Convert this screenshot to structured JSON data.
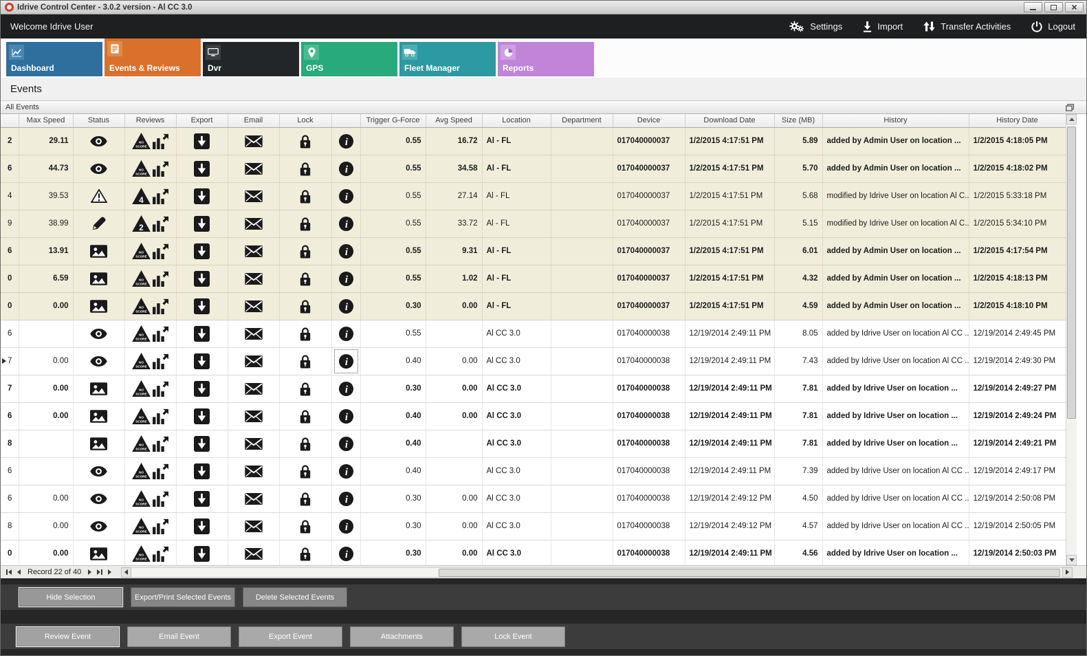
{
  "titlebar": {
    "title": "Idrive Control Center - 3.0.2 version - Al CC 3.0"
  },
  "topbar": {
    "welcome": "Welcome Idrive User",
    "actions": [
      {
        "id": "settings",
        "label": "Settings",
        "icon": "gears-icon"
      },
      {
        "id": "import",
        "label": "Import",
        "icon": "import-arrow-icon"
      },
      {
        "id": "transfer-activities",
        "label": "Transfer Activities",
        "icon": "transfer-arrows-icon"
      },
      {
        "id": "logout",
        "label": "Logout",
        "icon": "power-icon"
      }
    ]
  },
  "tabs": [
    {
      "id": "dashboard",
      "label": "Dashboard",
      "color": "#2e6f9e",
      "badge_color": "#4687b2",
      "active": false
    },
    {
      "id": "events-reviews",
      "label": "Events & Reviews",
      "color": "#d9712d",
      "badge_color": "#e18a48",
      "active": true
    },
    {
      "id": "dvr",
      "label": "Dvr",
      "color": "#232628",
      "badge_color": "#3b3f42",
      "active": false
    },
    {
      "id": "gps",
      "label": "GPS",
      "color": "#28aa7d",
      "badge_color": "#4cbb93",
      "active": false
    },
    {
      "id": "fleet-manager",
      "label": "Fleet Manager",
      "color": "#2d99a1",
      "badge_color": "#4fadb4",
      "active": false
    },
    {
      "id": "reports",
      "label": "Reports",
      "color": "#c084d8",
      "badge_color": "#cf9fe3",
      "active": false
    }
  ],
  "page": {
    "title": "Events",
    "panel_title": "All Events"
  },
  "grid": {
    "columns": [
      {
        "key": "edge",
        "label": ""
      },
      {
        "key": "max_speed",
        "label": "Max Speed"
      },
      {
        "key": "status",
        "label": "Status"
      },
      {
        "key": "reviews",
        "label": "Reviews"
      },
      {
        "key": "export",
        "label": "Export"
      },
      {
        "key": "email",
        "label": "Email"
      },
      {
        "key": "lock",
        "label": "Lock"
      },
      {
        "key": "info",
        "label": ""
      },
      {
        "key": "trigger",
        "label": "Trigger G-Force"
      },
      {
        "key": "avg_speed",
        "label": "Avg Speed"
      },
      {
        "key": "location",
        "label": "Location"
      },
      {
        "key": "department",
        "label": "Department"
      },
      {
        "key": "device",
        "label": "Device"
      },
      {
        "key": "download_date",
        "label": "Download Date"
      },
      {
        "key": "size",
        "label": "Size (MB)"
      },
      {
        "key": "history",
        "label": "History"
      },
      {
        "key": "history_date",
        "label": "History Date"
      }
    ],
    "rows": [
      {
        "edge": "2",
        "max_speed": "29.11",
        "status": "eye",
        "review": "noscore",
        "trigger": "0.55",
        "avg_speed": "16.72",
        "location": "Al - FL",
        "department": "",
        "device": "017040000037",
        "download_date": "1/2/2015 4:17:51 PM",
        "size": "5.89",
        "history": "added by Admin User on location ...",
        "history_date": "1/2/2015 4:18:05 PM",
        "bold": true,
        "shade": "beige",
        "selected": false
      },
      {
        "edge": "6",
        "max_speed": "44.73",
        "status": "eye",
        "review": "noscore",
        "trigger": "0.55",
        "avg_speed": "34.58",
        "location": "Al - FL",
        "department": "",
        "device": "017040000037",
        "download_date": "1/2/2015 4:17:51 PM",
        "size": "5.70",
        "history": "added by Admin User on location ...",
        "history_date": "1/2/2015 4:18:02 PM",
        "bold": true,
        "shade": "beige",
        "selected": false
      },
      {
        "edge": "4",
        "max_speed": "39.53",
        "status": "warning",
        "review": "score4",
        "trigger": "0.55",
        "avg_speed": "27.14",
        "location": "Al - FL",
        "department": "",
        "device": "017040000037",
        "download_date": "1/2/2015 4:17:51 PM",
        "size": "5.68",
        "history": "modified by Idrive User on location Al C...",
        "history_date": "1/2/2015 5:33:18 PM",
        "bold": false,
        "shade": "beige",
        "selected": false
      },
      {
        "edge": "9",
        "max_speed": "38.99",
        "status": "pencil",
        "review": "score2",
        "trigger": "0.55",
        "avg_speed": "33.72",
        "location": "Al - FL",
        "department": "",
        "device": "017040000037",
        "download_date": "1/2/2015 4:17:51 PM",
        "size": "5.15",
        "history": "modified by Idrive User on location Al C...",
        "history_date": "1/2/2015 5:34:10 PM",
        "bold": false,
        "shade": "beige",
        "selected": false
      },
      {
        "edge": "6",
        "max_speed": "13.91",
        "status": "image",
        "review": "noscore",
        "trigger": "0.55",
        "avg_speed": "9.31",
        "location": "Al - FL",
        "department": "",
        "device": "017040000037",
        "download_date": "1/2/2015 4:17:51 PM",
        "size": "6.01",
        "history": "added by Admin User on location ...",
        "history_date": "1/2/2015 4:17:54 PM",
        "bold": true,
        "shade": "beige",
        "selected": false
      },
      {
        "edge": "0",
        "max_speed": "6.59",
        "status": "image",
        "review": "noscore",
        "trigger": "0.55",
        "avg_speed": "1.02",
        "location": "Al - FL",
        "department": "",
        "device": "017040000037",
        "download_date": "1/2/2015 4:17:51 PM",
        "size": "4.32",
        "history": "added by Admin User on location ...",
        "history_date": "1/2/2015 4:18:13 PM",
        "bold": true,
        "shade": "beige",
        "selected": false
      },
      {
        "edge": "0",
        "max_speed": "0.00",
        "status": "image",
        "review": "noscore",
        "trigger": "0.30",
        "avg_speed": "0.00",
        "location": "Al - FL",
        "department": "",
        "device": "017040000037",
        "download_date": "1/2/2015 4:17:51 PM",
        "size": "4.59",
        "history": "added by Admin User on location ...",
        "history_date": "1/2/2015 4:18:10 PM",
        "bold": true,
        "shade": "beige",
        "selected": false
      },
      {
        "edge": "6",
        "max_speed": "",
        "status": "eye",
        "review": "noscore",
        "trigger": "0.55",
        "avg_speed": "",
        "location": "Al CC 3.0",
        "department": "",
        "device": "017040000038",
        "download_date": "12/19/2014 2:49:11 PM",
        "size": "8.05",
        "history": "added by Idrive User on location Al CC ...",
        "history_date": "12/19/2014 2:49:45 PM",
        "bold": false,
        "shade": "white",
        "selected": false
      },
      {
        "edge": "7",
        "max_speed": "0.00",
        "status": "eye",
        "review": "noscore",
        "trigger": "0.40",
        "avg_speed": "0.00",
        "location": "Al CC 3.0",
        "department": "",
        "device": "017040000038",
        "download_date": "12/19/2014 2:49:11 PM",
        "size": "7.43",
        "history": "added by Idrive User on location Al CC ...",
        "history_date": "12/19/2014 2:49:30 PM",
        "bold": false,
        "shade": "white",
        "selected": true
      },
      {
        "edge": "7",
        "max_speed": "0.00",
        "status": "image",
        "review": "noscore",
        "trigger": "0.30",
        "avg_speed": "0.00",
        "location": "Al CC 3.0",
        "department": "",
        "device": "017040000038",
        "download_date": "12/19/2014 2:49:11 PM",
        "size": "7.81",
        "history": "added by Idrive User on location ...",
        "history_date": "12/19/2014 2:49:27 PM",
        "bold": true,
        "shade": "white",
        "selected": false
      },
      {
        "edge": "6",
        "max_speed": "0.00",
        "status": "image",
        "review": "noscore",
        "trigger": "0.40",
        "avg_speed": "0.00",
        "location": "Al CC 3.0",
        "department": "",
        "device": "017040000038",
        "download_date": "12/19/2014 2:49:11 PM",
        "size": "7.81",
        "history": "added by Idrive User on location ...",
        "history_date": "12/19/2014 2:49:24 PM",
        "bold": true,
        "shade": "white",
        "selected": false
      },
      {
        "edge": "8",
        "max_speed": "",
        "status": "image",
        "review": "noscore",
        "trigger": "0.40",
        "avg_speed": "",
        "location": "Al CC 3.0",
        "department": "",
        "device": "017040000038",
        "download_date": "12/19/2014 2:49:11 PM",
        "size": "7.81",
        "history": "added by Idrive User on location ...",
        "history_date": "12/19/2014 2:49:21 PM",
        "bold": true,
        "shade": "white",
        "selected": false
      },
      {
        "edge": "6",
        "max_speed": "",
        "status": "eye",
        "review": "noscore",
        "trigger": "0.40",
        "avg_speed": "",
        "location": "Al CC 3.0",
        "department": "",
        "device": "017040000038",
        "download_date": "12/19/2014 2:49:11 PM",
        "size": "7.39",
        "history": "added by Idrive User on location Al CC ...",
        "history_date": "12/19/2014 2:49:17 PM",
        "bold": false,
        "shade": "white",
        "selected": false
      },
      {
        "edge": "6",
        "max_speed": "0.00",
        "status": "eye",
        "review": "noscore",
        "trigger": "0.30",
        "avg_speed": "0.00",
        "location": "Al CC 3.0",
        "department": "",
        "device": "017040000038",
        "download_date": "12/19/2014 2:49:12 PM",
        "size": "4.50",
        "history": "added by Idrive User on location Al CC ...",
        "history_date": "12/19/2014 2:50:08 PM",
        "bold": false,
        "shade": "white",
        "selected": false
      },
      {
        "edge": "8",
        "max_speed": "0.00",
        "status": "eye",
        "review": "noscore",
        "trigger": "0.30",
        "avg_speed": "0.00",
        "location": "Al CC 3.0",
        "department": "",
        "device": "017040000038",
        "download_date": "12/19/2014 2:49:12 PM",
        "size": "4.57",
        "history": "added by Idrive User on location Al CC ...",
        "history_date": "12/19/2014 2:50:05 PM",
        "bold": false,
        "shade": "white",
        "selected": false
      },
      {
        "edge": "0",
        "max_speed": "0.00",
        "status": "image",
        "review": "noscore",
        "trigger": "0.30",
        "avg_speed": "0.00",
        "location": "Al CC 3.0",
        "department": "",
        "device": "017040000038",
        "download_date": "12/19/2014 2:49:11 PM",
        "size": "4.56",
        "history": "added by Idrive User on location ...",
        "history_date": "12/19/2014 2:50:03 PM",
        "bold": true,
        "shade": "white",
        "selected": false
      }
    ]
  },
  "pager": {
    "record_label": "Record 22 of 40"
  },
  "selection_bar": [
    {
      "label": "Hide Selection",
      "focused": true
    },
    {
      "label": "Export/Print Selected Events",
      "focused": false
    },
    {
      "label": "Delete Selected  Events",
      "focused": false
    }
  ],
  "event_bar": [
    {
      "label": "Review Event",
      "focused": true
    },
    {
      "label": "Email Event",
      "focused": false
    },
    {
      "label": "Export Event",
      "focused": false
    },
    {
      "label": "Attachments",
      "focused": false
    },
    {
      "label": "Lock Event",
      "focused": false
    }
  ]
}
